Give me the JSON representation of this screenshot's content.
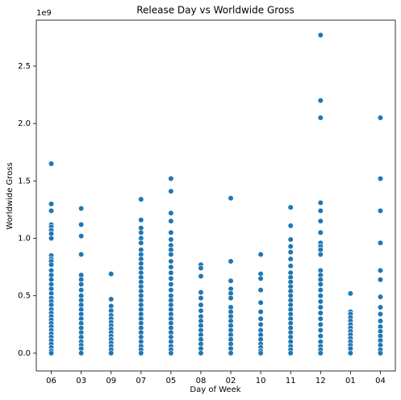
{
  "chart_data": {
    "type": "strip",
    "title": "Release Day vs Worldwide Gross",
    "x_label": "Day of Week",
    "y_label": "Worldwide Gross",
    "y_offset_label": "1e9",
    "categories": [
      "06",
      "03",
      "09",
      "07",
      "05",
      "08",
      "02",
      "10",
      "11",
      "12",
      "01",
      "04"
    ],
    "color": "#1f77b4",
    "values": [
      [
        1.65,
        1.3,
        1.24,
        1.12,
        1.1,
        1.07,
        1.04,
        1.0,
        0.85,
        0.82,
        0.8,
        0.77,
        0.72,
        0.68,
        0.64,
        0.6,
        0.56,
        0.52,
        0.48,
        0.45,
        0.42,
        0.38,
        0.35,
        0.32,
        0.29,
        0.26,
        0.23,
        0.2,
        0.17,
        0.14,
        0.11,
        0.08,
        0.05,
        0.02,
        0.0
      ],
      [
        1.26,
        1.12,
        1.02,
        0.86,
        0.68,
        0.64,
        0.6,
        0.55,
        0.5,
        0.46,
        0.42,
        0.38,
        0.34,
        0.3,
        0.26,
        0.22,
        0.18,
        0.14,
        0.1,
        0.07,
        0.04,
        0.0
      ],
      [
        0.69,
        0.47,
        0.41,
        0.37,
        0.33,
        0.3,
        0.27,
        0.24,
        0.21,
        0.18,
        0.15,
        0.12,
        0.09,
        0.06,
        0.03,
        0.0
      ],
      [
        1.34,
        1.16,
        1.09,
        1.05,
        1.0,
        0.96,
        0.9,
        0.86,
        0.82,
        0.78,
        0.74,
        0.7,
        0.66,
        0.62,
        0.58,
        0.54,
        0.5,
        0.46,
        0.42,
        0.38,
        0.34,
        0.3,
        0.26,
        0.22,
        0.18,
        0.14,
        0.1,
        0.06,
        0.03,
        0.0
      ],
      [
        1.52,
        1.41,
        1.22,
        1.15,
        1.05,
        0.99,
        0.94,
        0.9,
        0.86,
        0.8,
        0.75,
        0.7,
        0.65,
        0.6,
        0.55,
        0.5,
        0.46,
        0.42,
        0.38,
        0.34,
        0.3,
        0.26,
        0.22,
        0.18,
        0.14,
        0.1,
        0.06,
        0.03,
        0.0
      ],
      [
        0.77,
        0.74,
        0.67,
        0.53,
        0.48,
        0.42,
        0.37,
        0.32,
        0.28,
        0.24,
        0.2,
        0.16,
        0.12,
        0.08,
        0.04,
        0.0
      ],
      [
        1.35,
        0.8,
        0.63,
        0.56,
        0.52,
        0.48,
        0.4,
        0.36,
        0.32,
        0.28,
        0.24,
        0.2,
        0.16,
        0.12,
        0.08,
        0.04,
        0.0
      ],
      [
        0.86,
        0.69,
        0.65,
        0.55,
        0.44,
        0.36,
        0.3,
        0.25,
        0.2,
        0.16,
        0.12,
        0.08,
        0.05,
        0.02,
        0.0
      ],
      [
        1.27,
        1.11,
        0.99,
        0.93,
        0.88,
        0.82,
        0.76,
        0.7,
        0.66,
        0.62,
        0.58,
        0.54,
        0.5,
        0.46,
        0.42,
        0.38,
        0.34,
        0.3,
        0.26,
        0.22,
        0.18,
        0.14,
        0.1,
        0.06,
        0.03,
        0.0
      ],
      [
        2.77,
        2.2,
        2.05,
        1.31,
        1.24,
        1.15,
        1.05,
        0.96,
        0.93,
        0.9,
        0.86,
        0.72,
        0.68,
        0.64,
        0.6,
        0.55,
        0.5,
        0.45,
        0.4,
        0.35,
        0.3,
        0.25,
        0.2,
        0.15,
        0.1,
        0.06,
        0.03,
        0.0
      ],
      [
        0.52,
        0.36,
        0.34,
        0.31,
        0.28,
        0.25,
        0.22,
        0.19,
        0.16,
        0.13,
        0.1,
        0.07,
        0.04,
        0.0
      ],
      [
        2.05,
        1.52,
        1.24,
        0.96,
        0.72,
        0.64,
        0.49,
        0.4,
        0.34,
        0.28,
        0.23,
        0.19,
        0.15,
        0.11,
        0.07,
        0.03,
        0.0
      ]
    ],
    "ylim": [
      -0.155,
      2.9
    ],
    "yticks": [
      {
        "value": 0,
        "label": "0.0"
      },
      0.5,
      {
        "value": 1,
        "label": "1.0"
      },
      1.5,
      {
        "value": 2,
        "label": "2.0"
      },
      2.5
    ],
    "grid": false
  }
}
